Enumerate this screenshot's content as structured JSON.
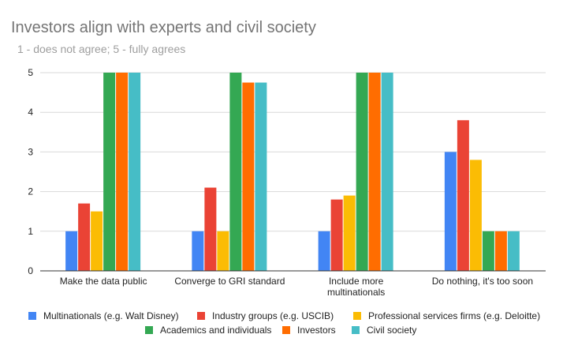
{
  "chart_data": {
    "type": "bar",
    "title": "Investors align with experts and civil society",
    "subtitle": "1 - does not agree; 5 - fully agrees",
    "categories": [
      "Make the data public",
      "Converge to GRI standard",
      "Include more multinationals",
      "Do nothing, it's too soon"
    ],
    "series": [
      {
        "name": "Multinationals (e.g. Walt Disney)",
        "color": "#4285f4",
        "values": [
          1,
          1,
          1,
          3
        ]
      },
      {
        "name": "Industry groups (e.g. USCIB)",
        "color": "#ea4335",
        "values": [
          1.7,
          2.1,
          1.8,
          3.8
        ]
      },
      {
        "name": "Professional services firms (e.g. Deloitte)",
        "color": "#fbbc04",
        "values": [
          1.5,
          1,
          1.9,
          2.8
        ]
      },
      {
        "name": "Academics and individuals",
        "color": "#34a853",
        "values": [
          5,
          5,
          5,
          1
        ]
      },
      {
        "name": "Investors",
        "color": "#ff6d01",
        "values": [
          5,
          4.75,
          5,
          1
        ]
      },
      {
        "name": "Civil society",
        "color": "#46bdc6",
        "values": [
          5,
          4.75,
          5,
          1
        ]
      }
    ],
    "yticks": [
      0,
      1,
      2,
      3,
      4,
      5
    ],
    "ylim": [
      0,
      5
    ],
    "xlabel": "",
    "ylabel": "",
    "grid": true,
    "legend_position": "bottom"
  }
}
